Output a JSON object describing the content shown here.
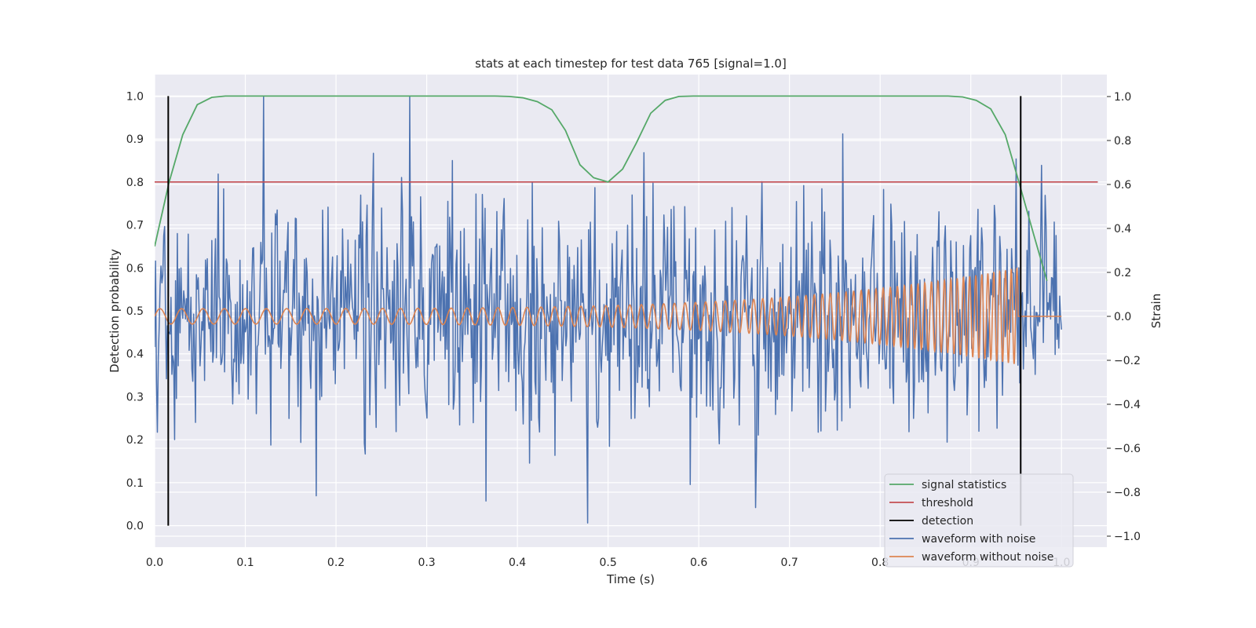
{
  "chart_data": {
    "type": "line",
    "title": "stats at each timestep for test data 765 [signal=1.0]",
    "xlabel": "Time (s)",
    "ylabel_left": "Detection probability",
    "ylabel_right": "Strain",
    "xlim": [
      0.0,
      1.05
    ],
    "ylim_left": [
      -0.05,
      1.05
    ],
    "ylim_right": [
      -1.05,
      1.1
    ],
    "x_ticks": [
      "0.0",
      "0.1",
      "0.2",
      "0.3",
      "0.4",
      "0.5",
      "0.6",
      "0.7",
      "0.8",
      "0.9",
      "1.0"
    ],
    "y_ticks_left": [
      "0.0",
      "0.1",
      "0.2",
      "0.3",
      "0.4",
      "0.5",
      "0.6",
      "0.7",
      "0.8",
      "0.9",
      "1.0"
    ],
    "y_ticks_right": [
      "−1.0",
      "−0.8",
      "−0.6",
      "−0.4",
      "−0.2",
      "0.0",
      "0.2",
      "0.4",
      "0.6",
      "0.8",
      "1.0"
    ],
    "grid": true,
    "legend_position": "lower-right",
    "colors": {
      "signal_statistics": "#55a868",
      "threshold": "#c44e52",
      "detection": "#000000",
      "waveform_noise": "#4c72b0",
      "waveform_clean": "#dd8452",
      "axes_bg": "#eaeaf2",
      "grid": "#ffffff"
    },
    "series": [
      {
        "name": "signal statistics",
        "axis": "left",
        "x": [
          0.0,
          0.016,
          0.031,
          0.047,
          0.063,
          0.078,
          0.094,
          0.11,
          0.2,
          0.3,
          0.375,
          0.391,
          0.406,
          0.422,
          0.438,
          0.453,
          0.469,
          0.484,
          0.5,
          0.516,
          0.531,
          0.547,
          0.563,
          0.578,
          0.594,
          0.7,
          0.8,
          0.875,
          0.891,
          0.906,
          0.922,
          0.938,
          0.953,
          0.969,
          0.984
        ],
        "y": [
          0.65,
          0.8,
          0.91,
          0.98,
          0.997,
          1.0,
          1.0,
          1.0,
          1.0,
          1.0,
          1.0,
          0.999,
          0.996,
          0.987,
          0.968,
          0.92,
          0.84,
          0.81,
          0.8,
          0.83,
          0.89,
          0.96,
          0.99,
          0.999,
          1.0,
          1.0,
          1.0,
          1.0,
          0.998,
          0.99,
          0.97,
          0.91,
          0.8,
          0.68,
          0.57
        ]
      },
      {
        "name": "threshold",
        "axis": "left",
        "x": [
          0.0,
          1.04
        ],
        "y": [
          0.8,
          0.8
        ]
      },
      {
        "name": "detection",
        "axis": "left",
        "segments": [
          {
            "x": 0.015,
            "y0": 0.0,
            "y1": 1.0
          },
          {
            "x": 0.955,
            "y0": 0.0,
            "y1": 1.0
          }
        ]
      },
      {
        "name": "waveform with noise",
        "axis": "right",
        "x_start": 0.0,
        "x_end": 1.0,
        "samples": 1000,
        "approx_std": 0.25,
        "approx_range": [
          -0.95,
          1.0
        ],
        "notable_points": [
          {
            "x": 0.281,
            "y": 1.0
          },
          {
            "x": 0.477,
            "y": -0.94
          },
          {
            "x": 0.365,
            "y": -0.84
          },
          {
            "x": 0.663,
            "y": -0.87
          },
          {
            "x": 0.759,
            "y": 0.83
          }
        ]
      },
      {
        "name": "waveform without noise",
        "axis": "right",
        "x_start": 0.0,
        "x_end": 1.0,
        "chirp_end": 0.952,
        "amplitude_start": 0.035,
        "amplitude_end": 0.22,
        "frequency_start_hz": 42,
        "frequency_end_hz": 160
      }
    ]
  }
}
